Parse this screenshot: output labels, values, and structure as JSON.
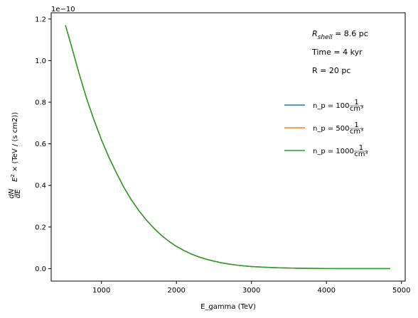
{
  "chart_data": {
    "type": "line",
    "xlabel": "E_gamma (TeV)",
    "ylabel_math": {
      "base": "E",
      "sup": "2",
      "times": "×",
      "frac_num": "dN",
      "frac_den": "dE",
      "units": "(TeV / (s cm2))"
    },
    "y_offset_label": "1e−10",
    "xlim": [
      330,
      5050
    ],
    "ylim": [
      -0.06,
      1.23
    ],
    "x_ticks": [
      {
        "value": 1000,
        "label": "1000"
      },
      {
        "value": 2000,
        "label": "2000"
      },
      {
        "value": 3000,
        "label": "3000"
      },
      {
        "value": 4000,
        "label": "4000"
      },
      {
        "value": 5000,
        "label": "5000"
      }
    ],
    "y_ticks": [
      {
        "value": 0.0,
        "label": "0.0"
      },
      {
        "value": 0.2,
        "label": "0.2"
      },
      {
        "value": 0.4,
        "label": "0.4"
      },
      {
        "value": 0.6,
        "label": "0.6"
      },
      {
        "value": 0.8,
        "label": "0.8"
      },
      {
        "value": 1.0,
        "label": "1.0"
      },
      {
        "value": 1.2,
        "label": "1.2"
      }
    ],
    "grid": false,
    "legend_position": "right",
    "annotations": [
      {
        "main": "R",
        "sub": "shell",
        "rest": " = 8.6 pc"
      },
      {
        "text": "Time = 4 kyr"
      },
      {
        "text": "R = 20 pc"
      }
    ],
    "x": [
      520,
      600,
      700,
      800,
      900,
      1000,
      1100,
      1200,
      1300,
      1400,
      1500,
      1600,
      1700,
      1800,
      1900,
      2000,
      2100,
      2200,
      2300,
      2400,
      2500,
      2600,
      2700,
      2800,
      2900,
      3000,
      3200,
      3400,
      3600,
      3800,
      4000,
      4200,
      4400,
      4600,
      4850
    ],
    "series": [
      {
        "name_text": "n_p = 100",
        "unit_num": "1",
        "unit_den": "cm³",
        "color": "#1f77b4",
        "values": [
          1.17,
          1.07,
          0.94,
          0.82,
          0.715,
          0.62,
          0.535,
          0.46,
          0.39,
          0.33,
          0.278,
          0.233,
          0.194,
          0.16,
          0.131,
          0.107,
          0.087,
          0.07,
          0.056,
          0.045,
          0.036,
          0.028,
          0.022,
          0.017,
          0.013,
          0.01,
          0.006,
          0.0035,
          0.002,
          0.001,
          0.0006,
          0.0003,
          0.0002,
          0.0001,
          0.0
        ]
      },
      {
        "name_text": "n_p = 500",
        "unit_num": "1",
        "unit_den": "cm³",
        "color": "#ff7f0e",
        "values": [
          1.17,
          1.07,
          0.94,
          0.82,
          0.715,
          0.62,
          0.535,
          0.46,
          0.39,
          0.33,
          0.278,
          0.233,
          0.194,
          0.16,
          0.131,
          0.107,
          0.087,
          0.07,
          0.056,
          0.045,
          0.036,
          0.028,
          0.022,
          0.017,
          0.013,
          0.01,
          0.006,
          0.0035,
          0.002,
          0.001,
          0.0006,
          0.0003,
          0.0002,
          0.0001,
          0.0
        ]
      },
      {
        "name_text": "n_p = 1000",
        "unit_num": "1",
        "unit_den": "cm³",
        "color": "#2ca02c",
        "values": [
          1.17,
          1.07,
          0.94,
          0.82,
          0.715,
          0.62,
          0.535,
          0.46,
          0.39,
          0.33,
          0.278,
          0.233,
          0.194,
          0.16,
          0.131,
          0.107,
          0.087,
          0.07,
          0.056,
          0.045,
          0.036,
          0.028,
          0.022,
          0.017,
          0.013,
          0.01,
          0.006,
          0.0035,
          0.002,
          0.001,
          0.0006,
          0.0003,
          0.0002,
          0.0001,
          0.0
        ]
      }
    ]
  }
}
